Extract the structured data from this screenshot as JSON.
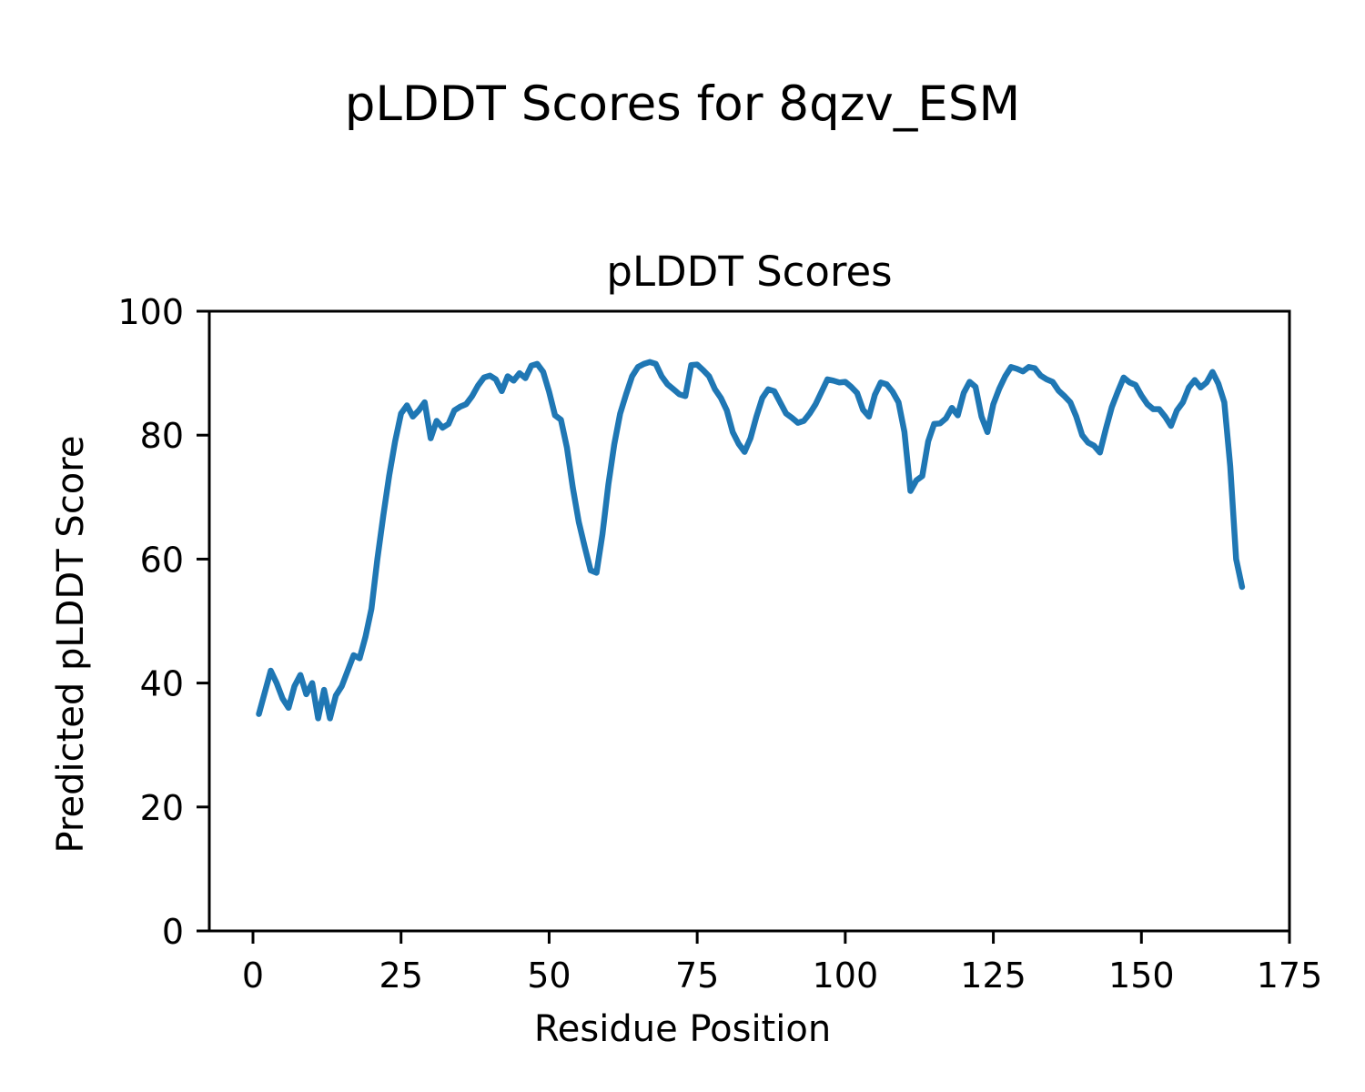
{
  "figure": {
    "suptitle": "pLDDT Scores for 8qzv_ESM"
  },
  "chart_data": {
    "type": "line",
    "title": "pLDDT Scores",
    "xlabel": "Residue Position",
    "ylabel": "Predicted pLDDT Score",
    "legend": null,
    "grid": false,
    "line_color": "#1f77b4",
    "axis_color": "#000000",
    "x_range": [
      1,
      167
    ],
    "xlim": [
      -7.3,
      175.3
    ],
    "ylim": [
      0,
      100
    ],
    "xticks": [
      0,
      25,
      50,
      75,
      100,
      125,
      150,
      175
    ],
    "yticks": [
      0,
      20,
      40,
      60,
      80,
      100
    ],
    "values": [
      35.0,
      38.5,
      42.0,
      40.0,
      37.5,
      36.0,
      39.5,
      41.3,
      38.2,
      40.0,
      34.3,
      38.9,
      34.3,
      38.0,
      39.5,
      42.0,
      44.5,
      44.0,
      47.5,
      52.0,
      60.0,
      67.0,
      73.5,
      79.0,
      83.5,
      84.8,
      83.0,
      84.0,
      85.3,
      79.5,
      82.3,
      81.2,
      81.8,
      84.0,
      84.6,
      85.0,
      86.3,
      88.0,
      89.3,
      89.6,
      89.0,
      87.1,
      89.5,
      88.8,
      90.0,
      89.2,
      91.2,
      91.5,
      90.2,
      87.0,
      83.2,
      82.5,
      78.0,
      71.5,
      66.0,
      62.0,
      58.2,
      57.8,
      64.0,
      72.0,
      78.5,
      83.5,
      86.6,
      89.5,
      91.0,
      91.5,
      91.8,
      91.5,
      89.5,
      88.2,
      87.4,
      86.6,
      86.3,
      91.3,
      91.4,
      90.5,
      89.5,
      87.4,
      86.0,
      84.0,
      80.5,
      78.6,
      77.3,
      79.5,
      83.0,
      86.0,
      87.4,
      87.1,
      85.3,
      83.5,
      82.8,
      82.0,
      82.3,
      83.5,
      85.0,
      87.0,
      89.0,
      88.8,
      88.5,
      88.6,
      87.8,
      86.8,
      84.1,
      83.0,
      86.5,
      88.5,
      88.2,
      87.0,
      85.3,
      80.5,
      71.0,
      72.7,
      73.4,
      79.0,
      81.8,
      81.9,
      82.7,
      84.4,
      83.2,
      86.8,
      88.6,
      87.8,
      83.0,
      80.5,
      85.0,
      87.5,
      89.5,
      91.0,
      90.7,
      90.3,
      91.0,
      90.8,
      89.6,
      89.0,
      88.6,
      87.2,
      86.3,
      85.3,
      83.0,
      80.0,
      78.8,
      78.3,
      77.2,
      81.0,
      84.5,
      87.0,
      89.3,
      88.5,
      88.1,
      86.4,
      85.0,
      84.2,
      84.2,
      83.0,
      81.5,
      84.0,
      85.3,
      87.7,
      88.9,
      87.7,
      88.5,
      90.2,
      88.3,
      85.3,
      75.0,
      60.0,
      55.5
    ]
  }
}
